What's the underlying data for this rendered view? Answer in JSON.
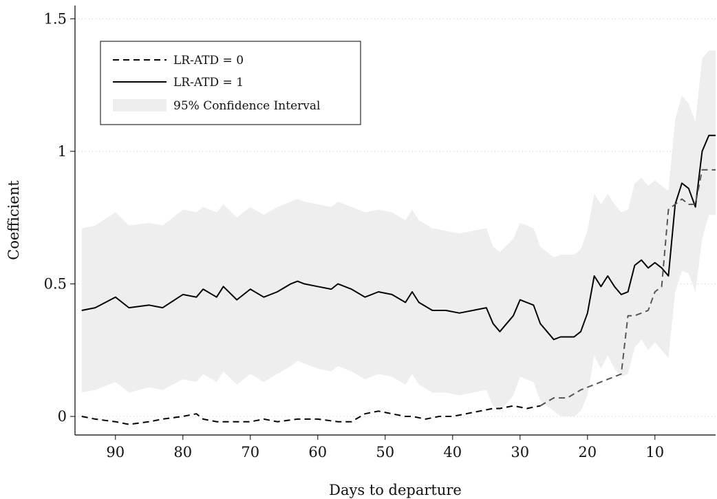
{
  "chart_data": {
    "type": "line",
    "xlabel": "Days to departure",
    "ylabel": "Coefficient",
    "x_reversed": true,
    "xlim": [
      1,
      96
    ],
    "ylim": [
      -0.07,
      1.55
    ],
    "xticks": [
      90,
      80,
      70,
      60,
      50,
      40,
      30,
      20,
      10
    ],
    "yticks": [
      0,
      0.5,
      1,
      1.5
    ],
    "ytick_labels": [
      "0",
      "0.5",
      "1",
      "1.5"
    ],
    "grid": "horizontal dotted",
    "legend": {
      "position": "top-left",
      "entries": [
        {
          "label": "LR-ATD = 0",
          "style": "dashed"
        },
        {
          "label": "LR-ATD = 1",
          "style": "solid"
        },
        {
          "label": "95% Confidence Interval",
          "style": "band"
        }
      ]
    },
    "colors": {
      "line": "#000000",
      "band": "#eeeeee",
      "dashed_late": "#555555"
    },
    "series": [
      {
        "name": "LR-ATD = 1",
        "style": "solid",
        "x": [
          95,
          93,
          90,
          88,
          85,
          83,
          80,
          78,
          77,
          75,
          74,
          72,
          70,
          68,
          66,
          64,
          63,
          62,
          60,
          58,
          57,
          55,
          53,
          51,
          49,
          47,
          46,
          45,
          43,
          41,
          39,
          37,
          35,
          34,
          33,
          31,
          30,
          28,
          27,
          25,
          24,
          22,
          21,
          20,
          19,
          18,
          17,
          16,
          15,
          14,
          13,
          12,
          11,
          10,
          9,
          8,
          7,
          6,
          5,
          4,
          3,
          2,
          1
        ],
        "values": [
          0.4,
          0.41,
          0.45,
          0.41,
          0.42,
          0.41,
          0.46,
          0.45,
          0.48,
          0.45,
          0.49,
          0.44,
          0.48,
          0.45,
          0.47,
          0.5,
          0.51,
          0.5,
          0.49,
          0.48,
          0.5,
          0.48,
          0.45,
          0.47,
          0.46,
          0.43,
          0.47,
          0.43,
          0.4,
          0.4,
          0.39,
          0.4,
          0.41,
          0.35,
          0.32,
          0.38,
          0.44,
          0.42,
          0.35,
          0.29,
          0.3,
          0.3,
          0.32,
          0.39,
          0.53,
          0.49,
          0.53,
          0.49,
          0.46,
          0.47,
          0.57,
          0.59,
          0.56,
          0.58,
          0.56,
          0.53,
          0.8,
          0.88,
          0.86,
          0.79,
          1.0,
          1.06,
          1.06
        ]
      },
      {
        "name": "LR-ATD = 0",
        "style": "dashed",
        "x": [
          95,
          93,
          90,
          88,
          85,
          83,
          80,
          78,
          77,
          75,
          73,
          70,
          68,
          66,
          63,
          60,
          57,
          55,
          53,
          51,
          49,
          47,
          46,
          44,
          42,
          40,
          38,
          36,
          34,
          33,
          31,
          29,
          27,
          25,
          23,
          21,
          19,
          17,
          15,
          14,
          13,
          11,
          10,
          9,
          8,
          7,
          6,
          5,
          4,
          3,
          2,
          1
        ],
        "values": [
          0.0,
          -0.01,
          -0.02,
          -0.03,
          -0.02,
          -0.01,
          0.0,
          0.01,
          -0.01,
          -0.02,
          -0.02,
          -0.02,
          -0.01,
          -0.02,
          -0.01,
          -0.01,
          -0.02,
          -0.02,
          0.01,
          0.02,
          0.01,
          0.0,
          0.0,
          -0.01,
          0.0,
          0.0,
          0.01,
          0.02,
          0.03,
          0.03,
          0.04,
          0.03,
          0.04,
          0.07,
          0.07,
          0.1,
          0.12,
          0.14,
          0.16,
          0.38,
          0.38,
          0.4,
          0.47,
          0.49,
          0.78,
          0.8,
          0.82,
          0.8,
          0.8,
          0.93,
          0.93,
          0.93
        ]
      }
    ],
    "band": {
      "name": "95% Confidence Interval",
      "x": [
        95,
        93,
        90,
        88,
        85,
        83,
        80,
        78,
        77,
        75,
        74,
        72,
        70,
        68,
        66,
        64,
        63,
        62,
        60,
        58,
        57,
        55,
        53,
        51,
        49,
        47,
        46,
        45,
        43,
        41,
        39,
        37,
        35,
        34,
        33,
        31,
        30,
        28,
        27,
        25,
        24,
        22,
        21,
        20,
        19,
        18,
        17,
        16,
        15,
        14,
        13,
        12,
        11,
        10,
        9,
        8,
        7,
        6,
        5,
        4,
        3,
        2,
        1
      ],
      "upper": [
        0.71,
        0.72,
        0.77,
        0.72,
        0.73,
        0.72,
        0.78,
        0.77,
        0.79,
        0.77,
        0.8,
        0.75,
        0.79,
        0.76,
        0.79,
        0.81,
        0.82,
        0.81,
        0.8,
        0.79,
        0.81,
        0.79,
        0.77,
        0.78,
        0.77,
        0.74,
        0.78,
        0.74,
        0.71,
        0.7,
        0.69,
        0.7,
        0.71,
        0.64,
        0.62,
        0.67,
        0.73,
        0.71,
        0.64,
        0.6,
        0.61,
        0.61,
        0.63,
        0.7,
        0.84,
        0.8,
        0.84,
        0.8,
        0.77,
        0.78,
        0.88,
        0.9,
        0.87,
        0.89,
        0.87,
        0.85,
        1.12,
        1.21,
        1.18,
        1.11,
        1.35,
        1.38,
        1.38
      ],
      "lower": [
        0.09,
        0.1,
        0.13,
        0.09,
        0.11,
        0.1,
        0.14,
        0.13,
        0.16,
        0.13,
        0.17,
        0.12,
        0.16,
        0.13,
        0.16,
        0.19,
        0.21,
        0.2,
        0.18,
        0.17,
        0.19,
        0.17,
        0.14,
        0.16,
        0.15,
        0.12,
        0.16,
        0.12,
        0.09,
        0.09,
        0.08,
        0.09,
        0.1,
        0.04,
        0.02,
        0.08,
        0.15,
        0.13,
        0.06,
        0.02,
        0.0,
        0.0,
        0.02,
        0.08,
        0.23,
        0.18,
        0.23,
        0.18,
        0.15,
        0.16,
        0.26,
        0.29,
        0.25,
        0.28,
        0.25,
        0.22,
        0.47,
        0.55,
        0.54,
        0.47,
        0.67,
        0.76,
        0.76
      ]
    }
  }
}
